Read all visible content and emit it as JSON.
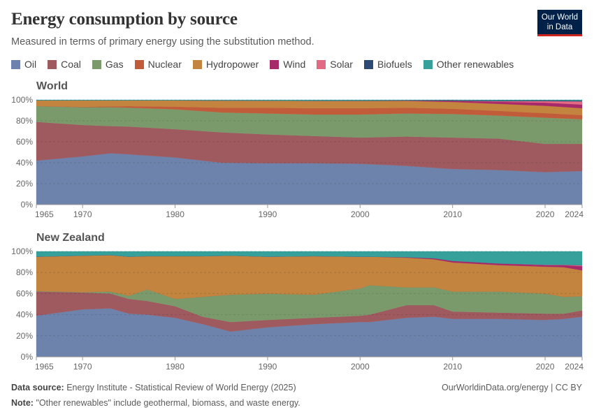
{
  "header": {
    "title": "Energy consumption by source",
    "subtitle": "Measured in terms of primary energy using the substitution method.",
    "logo": "Our World in Data"
  },
  "legend": [
    {
      "name": "Oil",
      "color": "#6d83ab"
    },
    {
      "name": "Coal",
      "color": "#9e5a5f"
    },
    {
      "name": "Gas",
      "color": "#7b9a6b"
    },
    {
      "name": "Nuclear",
      "color": "#c15c3a"
    },
    {
      "name": "Hydropower",
      "color": "#c2843e"
    },
    {
      "name": "Wind",
      "color": "#a72969"
    },
    {
      "name": "Solar",
      "color": "#e36a83"
    },
    {
      "name": "Biofuels",
      "color": "#2d4a75"
    },
    {
      "name": "Other renewables",
      "color": "#36a09a"
    }
  ],
  "chart_data": [
    {
      "type": "area",
      "title": "World",
      "stacked": true,
      "ylim": [
        0,
        100
      ],
      "yticks": [
        "0%",
        "20%",
        "40%",
        "60%",
        "80%",
        "100%"
      ],
      "xticks": [
        1965,
        1970,
        1980,
        1990,
        2000,
        2010,
        2020,
        2024
      ],
      "grid": true,
      "x": [
        1965,
        1970,
        1973,
        1975,
        1980,
        1985,
        1990,
        1995,
        2000,
        2005,
        2010,
        2015,
        2020,
        2024
      ],
      "series": [
        {
          "name": "Oil",
          "values": [
            42,
            46,
            49,
            48,
            45,
            40,
            39.5,
            39.5,
            39,
            37,
            34,
            33,
            31,
            32
          ]
        },
        {
          "name": "Coal",
          "values": [
            37,
            30,
            26,
            26.5,
            27,
            29,
            27.5,
            26,
            25,
            28,
            30,
            30,
            27,
            26
          ]
        },
        {
          "name": "Gas",
          "values": [
            15,
            17,
            18,
            18,
            19,
            19,
            20,
            20.5,
            22,
            22,
            22.5,
            22,
            25,
            23.5
          ]
        },
        {
          "name": "Nuclear",
          "values": [
            0.2,
            0.4,
            0.8,
            1.5,
            2.5,
            4.5,
            5.5,
            6,
            6,
            5.5,
            5,
            4.5,
            4.3,
            4
          ]
        },
        {
          "name": "Hydropower",
          "values": [
            5.3,
            6.1,
            5.7,
            5.5,
            6,
            6.9,
            6.8,
            7,
            7,
            6.5,
            6.5,
            6.7,
            7,
            6.5
          ]
        },
        {
          "name": "Wind",
          "values": [
            0,
            0,
            0,
            0,
            0,
            0,
            0,
            0.05,
            0.1,
            0.3,
            1,
            2,
            3,
            3.5
          ]
        },
        {
          "name": "Solar",
          "values": [
            0,
            0,
            0,
            0,
            0,
            0,
            0,
            0,
            0,
            0.01,
            0.1,
            0.5,
            1.5,
            3
          ]
        },
        {
          "name": "Biofuels",
          "values": [
            0,
            0,
            0,
            0,
            0,
            0,
            0,
            0.1,
            0.15,
            0.3,
            0.6,
            0.6,
            0.7,
            0.7
          ]
        },
        {
          "name": "Other renewables",
          "values": [
            0.5,
            0.5,
            0.5,
            0.5,
            0.5,
            0.6,
            0.7,
            0.85,
            0.75,
            0.39,
            0.3,
            0.7,
            0.5,
            0.8
          ]
        }
      ]
    },
    {
      "type": "area",
      "title": "New Zealand",
      "stacked": true,
      "ylim": [
        0,
        100
      ],
      "yticks": [
        "0%",
        "20%",
        "40%",
        "60%",
        "80%",
        "100%"
      ],
      "xticks": [
        1965,
        1970,
        1980,
        1990,
        2000,
        2010,
        2020,
        2024
      ],
      "grid": true,
      "x": [
        1965,
        1970,
        1973,
        1975,
        1977,
        1980,
        1983,
        1986,
        1990,
        1995,
        2000,
        2001,
        2005,
        2008,
        2010,
        2015,
        2020,
        2022,
        2024
      ],
      "series": [
        {
          "name": "Oil",
          "values": [
            39,
            45,
            46,
            41,
            40,
            37,
            31,
            24,
            28,
            31,
            33,
            33,
            37,
            38,
            36,
            36,
            35,
            36,
            38
          ]
        },
        {
          "name": "Coal",
          "values": [
            23,
            16,
            14,
            14,
            13,
            11,
            7,
            9,
            7,
            6,
            6,
            7,
            12,
            11,
            7,
            6,
            6,
            5,
            6
          ]
        },
        {
          "name": "Gas",
          "values": [
            0.5,
            0.5,
            2,
            3,
            11,
            7,
            19,
            26,
            25,
            22,
            26,
            28,
            17,
            17,
            19,
            20,
            19,
            16,
            13.5
          ]
        },
        {
          "name": "Nuclear",
          "values": [
            0,
            0,
            0,
            0,
            0,
            0,
            0,
            0,
            0,
            0,
            0,
            0,
            0,
            0,
            0,
            0,
            0,
            0,
            0
          ]
        },
        {
          "name": "Hydropower",
          "values": [
            32.5,
            34.5,
            34.5,
            37,
            31.5,
            40.5,
            38.5,
            37,
            35,
            36.5,
            30,
            27,
            28,
            26.5,
            27.5,
            25,
            25.5,
            28,
            24.5
          ]
        },
        {
          "name": "Wind",
          "values": [
            0,
            0,
            0,
            0,
            0,
            0,
            0,
            0,
            0,
            0,
            0,
            0,
            0.5,
            1,
            1.5,
            1.5,
            1.5,
            2,
            4
          ]
        },
        {
          "name": "Solar",
          "values": [
            0,
            0,
            0,
            0,
            0,
            0,
            0,
            0,
            0,
            0,
            0,
            0,
            0,
            0,
            0,
            0.1,
            0.3,
            0.3,
            0.8
          ]
        },
        {
          "name": "Biofuels",
          "values": [
            0,
            0,
            0,
            0,
            0,
            0,
            0,
            0,
            0,
            0,
            0,
            0,
            0,
            0,
            0,
            0,
            0,
            0,
            0.2
          ]
        },
        {
          "name": "Other renewables",
          "values": [
            5,
            4,
            3.5,
            5,
            4.5,
            4.5,
            4.5,
            4,
            5,
            4.5,
            5,
            5,
            5.5,
            6.5,
            9,
            11.4,
            12.7,
            12.7,
            13
          ]
        }
      ]
    }
  ],
  "footer": {
    "source_label": "Data source:",
    "source": "Energy Institute - Statistical Review of World Energy (2025)",
    "note_label": "Note:",
    "note": "\"Other renewables\" include geothermal, biomass, and waste energy.",
    "credit": "OurWorldinData.org/energy | CC BY"
  }
}
